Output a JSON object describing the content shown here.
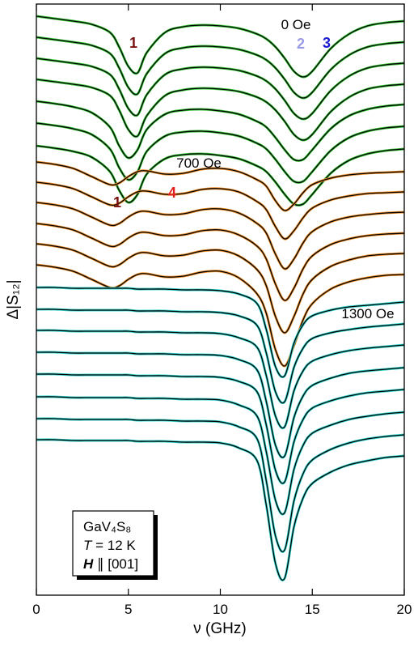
{
  "chart_data": {
    "type": "line",
    "x_label": "ν (GHz)",
    "y_label": "Δ|S₁₂|",
    "xlim": [
      0,
      20
    ],
    "xticks": [
      0,
      5,
      10,
      15,
      20
    ],
    "ylim": [
      0,
      730
    ],
    "fit_color": "#000000",
    "x": [
      0,
      1,
      2,
      3,
      4,
      4.5,
      5,
      5.5,
      6,
      7,
      8,
      9,
      10,
      11,
      12,
      12.5,
      13,
      13.5,
      14,
      14.5,
      15,
      16,
      17,
      18,
      19,
      20
    ],
    "series": [
      {
        "color": "#3cc83c",
        "values": [
          715,
          712,
          709,
          705,
          695,
          677,
          653,
          645,
          670,
          695,
          702,
          704,
          703,
          700,
          693,
          687,
          677,
          663,
          647,
          640,
          647,
          675,
          693,
          703,
          707,
          709
        ]
      },
      {
        "color": "#3cc83c",
        "values": [
          689,
          686,
          683,
          679,
          669,
          651,
          627,
          619,
          644,
          669,
          676,
          678,
          677,
          674,
          667,
          661,
          651,
          637,
          621,
          614,
          621,
          649,
          667,
          677,
          681,
          683
        ]
      },
      {
        "color": "#3cc83c",
        "values": [
          663,
          660,
          657,
          653,
          643,
          625,
          601,
          593,
          618,
          643,
          650,
          652,
          651,
          648,
          641,
          635,
          625,
          611,
          595,
          588,
          595,
          623,
          641,
          651,
          655,
          657
        ]
      },
      {
        "color": "#3cc83c",
        "values": [
          637,
          634,
          631,
          627,
          617,
          599,
          575,
          567,
          592,
          617,
          624,
          626,
          625,
          622,
          615,
          609,
          599,
          585,
          569,
          562,
          569,
          597,
          615,
          625,
          629,
          631
        ]
      },
      {
        "color": "#3cc83c",
        "values": [
          610,
          607,
          603,
          596,
          578,
          555,
          540,
          550,
          575,
          594,
          599,
          600,
          598,
          594,
          585,
          578,
          565,
          550,
          538,
          538,
          550,
          576,
          592,
          600,
          604,
          606
        ]
      },
      {
        "color": "#3cc83c",
        "values": [
          583,
          580,
          576,
          569,
          551,
          528,
          513,
          523,
          548,
          567,
          572,
          573,
          571,
          567,
          558,
          551,
          538,
          523,
          511,
          511,
          523,
          549,
          565,
          573,
          577,
          579
        ]
      },
      {
        "color": "#3cc83c",
        "values": [
          555,
          552,
          548,
          541,
          523,
          500,
          485,
          495,
          520,
          539,
          544,
          545,
          543,
          539,
          530,
          523,
          510,
          495,
          483,
          483,
          495,
          521,
          537,
          545,
          549,
          551
        ]
      },
      {
        "color": "#f0902a",
        "values": [
          535,
          532,
          527,
          517,
          507,
          509,
          517,
          523,
          524,
          520,
          521,
          526,
          527,
          523,
          513,
          505,
          487,
          475,
          483,
          497,
          507,
          515,
          519,
          521,
          522,
          523
        ]
      },
      {
        "color": "#f0902a",
        "values": [
          510,
          507,
          502,
          492,
          482,
          484,
          492,
          498,
          499,
          495,
          496,
          501,
          502,
          498,
          486,
          476,
          455,
          440,
          450,
          466,
          478,
          488,
          493,
          496,
          497,
          498
        ]
      },
      {
        "color": "#f0902a",
        "values": [
          485,
          482,
          477,
          467,
          457,
          459,
          467,
          473,
          474,
          470,
          471,
          476,
          477,
          472,
          459,
          447,
          421,
          403,
          415,
          435,
          449,
          461,
          467,
          470,
          472,
          473
        ]
      },
      {
        "color": "#f0902a",
        "values": [
          459,
          456,
          451,
          441,
          431,
          433,
          441,
          447,
          448,
          444,
          445,
          450,
          451,
          445,
          431,
          415,
          384,
          364,
          379,
          403,
          419,
          433,
          440,
          444,
          446,
          447
        ]
      },
      {
        "color": "#f0902a",
        "values": [
          434,
          431,
          426,
          416,
          406,
          408,
          416,
          422,
          423,
          419,
          420,
          425,
          426,
          419,
          402,
          382,
          344,
          324,
          344,
          372,
          390,
          406,
          414,
          419,
          421,
          422
        ]
      },
      {
        "color": "#f0902a",
        "values": [
          408,
          405,
          400,
          390,
          380,
          382,
          390,
          396,
          397,
          393,
          394,
          399,
          400,
          392,
          372,
          348,
          303,
          283,
          308,
          340,
          360,
          378,
          387,
          392,
          395,
          396
        ]
      },
      {
        "color": "#33d6d0",
        "values": [
          380,
          380,
          379,
          379,
          379,
          379,
          379,
          378,
          378,
          378,
          377,
          377,
          376,
          372,
          360,
          328,
          282,
          271,
          311,
          334,
          345,
          352,
          356,
          358,
          360,
          362
        ]
      },
      {
        "color": "#33d6d0",
        "values": [
          353,
          353,
          352,
          352,
          352,
          352,
          352,
          351,
          351,
          351,
          350,
          350,
          349,
          345,
          333,
          299,
          251,
          239,
          281,
          305,
          317,
          324,
          328,
          331,
          333,
          335
        ]
      },
      {
        "color": "#33d6d0",
        "values": [
          327,
          327,
          326,
          326,
          326,
          326,
          326,
          325,
          325,
          325,
          324,
          324,
          323,
          318,
          306,
          271,
          221,
          208,
          252,
          277,
          289,
          297,
          302,
          305,
          307,
          309
        ]
      },
      {
        "color": "#33d6d0",
        "values": [
          300,
          300,
          299,
          299,
          299,
          299,
          299,
          298,
          298,
          298,
          297,
          297,
          296,
          291,
          278,
          239,
          185,
          172,
          219,
          246,
          259,
          268,
          274,
          277,
          279,
          281
        ]
      },
      {
        "color": "#33d6d0",
        "values": [
          273,
          273,
          272,
          272,
          272,
          272,
          272,
          271,
          271,
          271,
          270,
          270,
          269,
          264,
          251,
          210,
          154,
          140,
          189,
          217,
          231,
          240,
          246,
          250,
          252,
          254
        ]
      },
      {
        "color": "#33d6d0",
        "values": [
          245,
          245,
          244,
          244,
          244,
          244,
          244,
          243,
          243,
          243,
          242,
          242,
          241,
          235,
          221,
          177,
          117,
          102,
          155,
          185,
          200,
          210,
          217,
          221,
          224,
          226
        ]
      },
      {
        "color": "#33d6d0",
        "values": [
          218,
          218,
          217,
          217,
          217,
          217,
          217,
          216,
          216,
          216,
          215,
          215,
          214,
          208,
          193,
          141,
          73,
          56,
          116,
          150,
          167,
          180,
          188,
          193,
          196,
          198
        ]
      },
      {
        "color": "#33d6d0",
        "values": [
          192,
          192,
          191,
          191,
          191,
          191,
          191,
          190,
          190,
          190,
          189,
          189,
          188,
          182,
          166,
          111,
          39,
          21,
          84,
          120,
          138,
          152,
          161,
          166,
          170,
          172
        ]
      }
    ],
    "annotations": [
      {
        "text": "0 Oe",
        "color": "#000000",
        "bold": false
      },
      {
        "text": "1",
        "color": "#7a1010",
        "bold": true
      },
      {
        "text": "2",
        "color": "#9a9ae8",
        "bold": true
      },
      {
        "text": "3",
        "color": "#1a1ad0",
        "bold": true
      },
      {
        "text": "700 Oe",
        "color": "#000000",
        "bold": false
      },
      {
        "text": "1",
        "color": "#7a1010",
        "bold": true
      },
      {
        "text": "4",
        "color": "#e02020",
        "bold": true
      },
      {
        "text": "1300 Oe",
        "color": "#000000",
        "bold": false
      }
    ],
    "info_box": [
      [
        {
          "text": "GaV₄S₈",
          "style": "normal"
        }
      ],
      [
        {
          "text": "T",
          "style": "italic"
        },
        {
          "text": " = 12 K",
          "style": "normal"
        }
      ],
      [
        {
          "text": "H",
          "style": "bold-italic"
        },
        {
          "text": " ∥ [001]",
          "style": "normal"
        }
      ]
    ]
  }
}
